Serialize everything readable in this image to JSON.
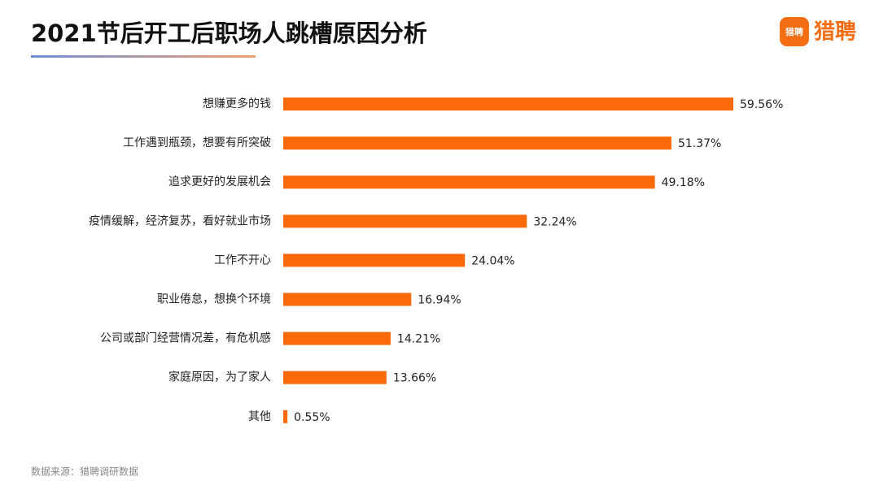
{
  "chart_data": {
    "type": "bar",
    "orientation": "horizontal",
    "title": "2021节后开工后职场人跳槽原因分析",
    "brand": "猎聘",
    "source": "数据来源：猎聘调研数据",
    "categories": [
      "想赚更多的钱",
      "工作遇到瓶颈，想要有所突破",
      "追求更好的发展机会",
      "疫情缓解，经济复苏，看好就业市场",
      "工作不开心",
      "职业倦怠，想换个环境",
      "公司或部门经营情况差，有危机感",
      "家庭原因，为了家人",
      "其他"
    ],
    "values": [
      59.56,
      51.37,
      49.18,
      32.24,
      24.04,
      16.94,
      14.21,
      13.66,
      0.55
    ],
    "value_labels": [
      "59.56%",
      "51.37%",
      "49.18%",
      "32.24%",
      "24.04%",
      "16.94%",
      "14.21%",
      "13.66%",
      "0.55%"
    ],
    "color": "#fa6a0a"
  }
}
